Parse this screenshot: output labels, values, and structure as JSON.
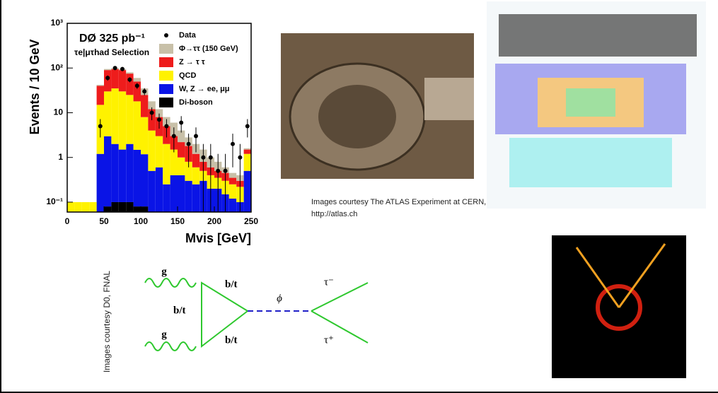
{
  "chart_data": {
    "type": "histogram",
    "title": "DØ 325 pb⁻¹",
    "subtitle": "τe|μτhad Selection",
    "ylabel": "Events / 10 GeV",
    "xlabel": "Mvis [GeV]",
    "log_y": true,
    "xlim": [
      0,
      250
    ],
    "xticks": [
      0,
      50,
      100,
      150,
      200,
      250
    ],
    "ylim": [
      0.06,
      1000
    ],
    "yticks": [
      {
        "value": 0.1,
        "label": "10⁻¹"
      },
      1,
      10,
      {
        "value": 100,
        "label": "10²"
      },
      {
        "value": 1000,
        "label": "10³"
      }
    ],
    "bins": [
      0,
      10,
      20,
      30,
      40,
      50,
      60,
      70,
      80,
      90,
      100,
      110,
      120,
      130,
      140,
      150,
      160,
      170,
      180,
      190,
      200,
      210,
      220,
      230,
      240,
      250
    ],
    "series": [
      {
        "name": "Di-boson",
        "color": "#000000",
        "values": [
          0,
          0,
          0,
          0,
          0,
          0.08,
          0.1,
          0.1,
          0.1,
          0.08,
          0.08,
          0,
          0,
          0,
          0,
          0,
          0,
          0,
          0,
          0,
          0,
          0,
          0,
          0,
          0
        ]
      },
      {
        "name": "W, Z → ee, μμ",
        "color": "#0a14e6",
        "values": [
          0,
          0,
          0,
          0,
          1.2,
          2.9,
          1.9,
          1.4,
          1.9,
          1.4,
          1.1,
          0.5,
          0.6,
          0.25,
          0.4,
          0.4,
          0.3,
          0.25,
          0.3,
          0.2,
          0.2,
          0.15,
          0.12,
          0.1,
          0.5
        ]
      },
      {
        "name": "QCD",
        "color": "#fff200",
        "values": [
          0.1,
          0.1,
          0.1,
          0.1,
          13.8,
          27,
          33,
          28.5,
          23,
          16.5,
          6.8,
          3.5,
          2.4,
          1.75,
          1.1,
          0.6,
          0.5,
          0.35,
          0.2,
          0.2,
          0.15,
          0.15,
          0.13,
          0.12,
          0.7
        ]
      },
      {
        "name": "Z → τ τ",
        "color": "#ee1c1c",
        "values": [
          0,
          0,
          0,
          0,
          25,
          60,
          60,
          60,
          50,
          32,
          17,
          8,
          5,
          3,
          1.5,
          1.2,
          1,
          0.6,
          0.3,
          0.2,
          0.15,
          0.15,
          0.1,
          0.08,
          0.3
        ]
      },
      {
        "name": "Φ→ττ (150 GeV)",
        "color": "#c8c0a8",
        "values": [
          0,
          0,
          0,
          0,
          2,
          5,
          5,
          5,
          5,
          10,
          10,
          6,
          4,
          3,
          3,
          1.8,
          1,
          0.8,
          0.7,
          0.4,
          0.3,
          0.15,
          0.1,
          0.1,
          0.1
        ]
      }
    ],
    "points": {
      "name": "Data",
      "color": "#000000",
      "x": [
        45,
        55,
        65,
        75,
        85,
        95,
        105,
        115,
        125,
        135,
        145,
        155,
        165,
        175,
        185,
        195,
        205,
        215,
        225,
        235,
        245
      ],
      "values": [
        5,
        60,
        100,
        95,
        55,
        40,
        30,
        10,
        7,
        5,
        3,
        6,
        2,
        3,
        1,
        1,
        0.5,
        0.5,
        2,
        1,
        5
      ],
      "errors": [
        2.2,
        8,
        10,
        10,
        7,
        6,
        5.5,
        3.2,
        2.6,
        2.2,
        1.7,
        2.4,
        1.4,
        1.7,
        1,
        1,
        0.7,
        0.7,
        1.4,
        1,
        2.2
      ]
    }
  },
  "captions": {
    "atlas": "Images courtesy The ATLAS Experiment at CERN, http://atlas.ch",
    "d0": "Images courtesy D0, FNAL"
  },
  "feynman": {
    "gluon_top": "g",
    "gluon_bottom": "g",
    "quark_top": "b/t",
    "quark_left": "b/t",
    "quark_bottom": "b/t",
    "boson": "ϕ",
    "tau_minus": "τ⁻",
    "tau_plus": "τ⁺"
  }
}
